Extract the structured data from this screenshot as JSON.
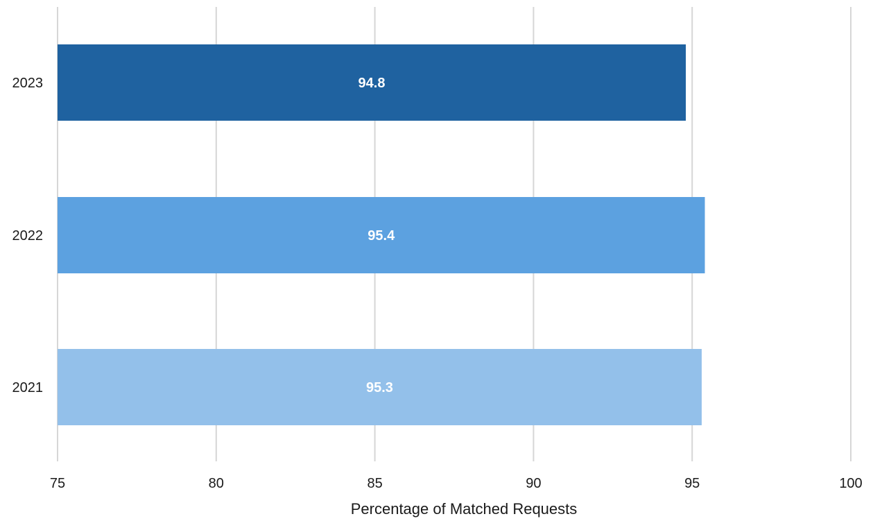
{
  "chart_data": {
    "type": "bar",
    "orientation": "horizontal",
    "categories": [
      "2023",
      "2022",
      "2021"
    ],
    "values": [
      94.8,
      95.4,
      95.3
    ],
    "data_labels": [
      "94.8",
      "95.4",
      "95.3"
    ],
    "bar_colors": [
      "#1f62a0",
      "#5ca1e0",
      "#93c0ea"
    ],
    "xlabel": "Percentage of Matched Requests",
    "ylabel": "",
    "title": "",
    "xlim": [
      75,
      100
    ],
    "xticks": [
      75,
      80,
      85,
      90,
      95,
      100
    ],
    "xtick_labels": [
      "75",
      "80",
      "85",
      "90",
      "95",
      "100"
    ],
    "grid": "vertical",
    "legend": "none"
  }
}
